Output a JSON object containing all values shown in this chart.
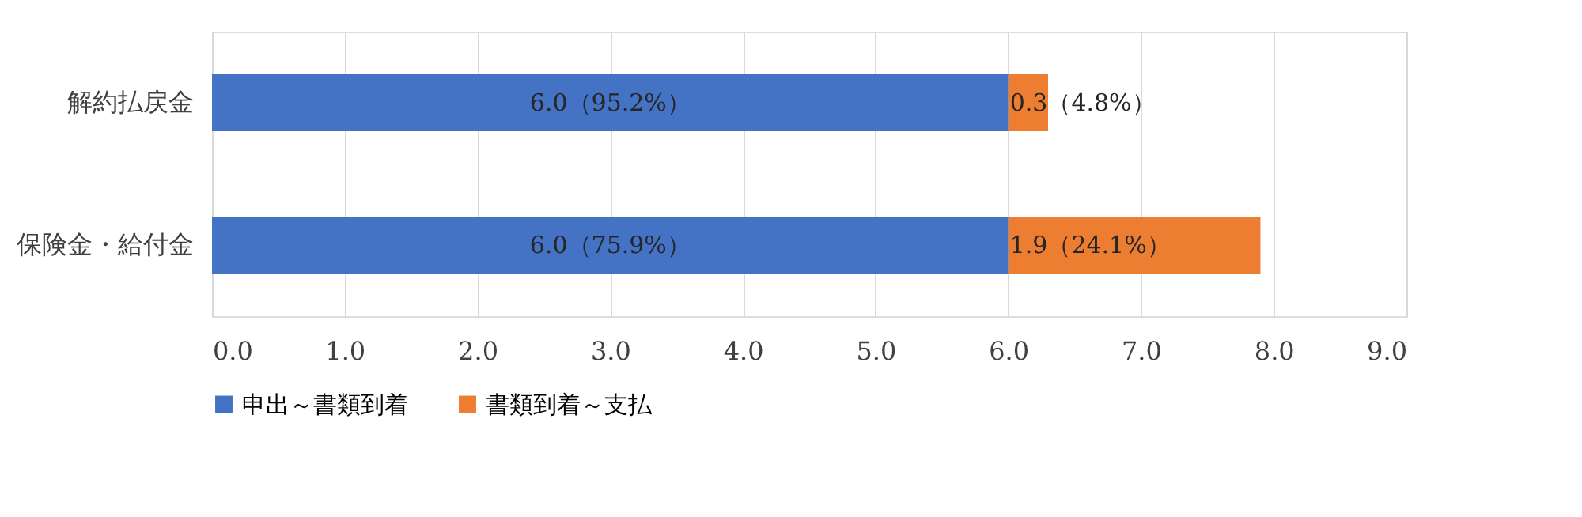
{
  "chart_data": {
    "type": "bar",
    "orientation": "horizontal",
    "stacked": true,
    "categories": [
      "解約払戻金",
      "保険金・給付金"
    ],
    "series": [
      {
        "name": "申出～書類到着",
        "color": "#4472c4",
        "values": [
          6.0,
          6.0
        ],
        "value_labels": [
          "6.0（95.2%）",
          "6.0（75.9%）"
        ]
      },
      {
        "name": "書類到着～支払",
        "color": "#ed7d31",
        "values": [
          0.3,
          1.9
        ],
        "value_labels": [
          "0.3（4.8%）",
          "1.9（24.1%）"
        ]
      }
    ],
    "xlim": [
      0,
      9
    ],
    "xticks": [
      {
        "value": 0,
        "label": "0.0"
      },
      {
        "value": 1,
        "label": "1.0"
      },
      {
        "value": 2,
        "label": "2.0"
      },
      {
        "value": 3,
        "label": "3.0"
      },
      {
        "value": 4,
        "label": "4.0"
      },
      {
        "value": 5,
        "label": "5.0"
      },
      {
        "value": 6,
        "label": "6.0"
      },
      {
        "value": 7,
        "label": "7.0"
      },
      {
        "value": 8,
        "label": "8.0"
      },
      {
        "value": 9,
        "label": "9.0"
      }
    ],
    "grid": "x",
    "legend": "bottom"
  }
}
